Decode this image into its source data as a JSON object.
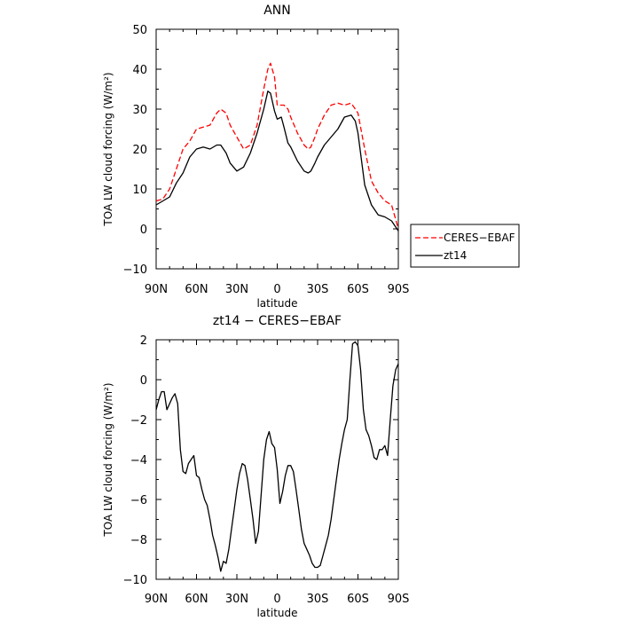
{
  "chart_data": [
    {
      "type": "line",
      "title": "ANN",
      "xlabel": "latitude",
      "ylabel": "TOA LW cloud forcing (W/m²)",
      "xlim": [
        90,
        -90
      ],
      "ylim": [
        -10,
        50
      ],
      "xticks": [
        90,
        60,
        30,
        0,
        -30,
        -60,
        -90
      ],
      "xtick_labels": [
        "90N",
        "60N",
        "30N",
        "0",
        "30S",
        "60S",
        "90S"
      ],
      "yticks": [
        -10,
        0,
        10,
        20,
        30,
        40,
        50
      ],
      "ytick_labels": [
        "−10",
        "0",
        "10",
        "20",
        "30",
        "40",
        "50"
      ],
      "legend": {
        "placement": "right"
      },
      "series": [
        {
          "name": "CERES−EBAF",
          "color": "#ff0000",
          "dash": "dashed",
          "x": [
            90,
            85,
            80,
            75,
            70,
            65,
            60,
            55,
            50,
            45,
            42,
            38,
            35,
            30,
            25,
            20,
            15,
            10,
            7,
            5,
            2,
            0,
            -3,
            -5,
            -8,
            -10,
            -15,
            -20,
            -23,
            -25,
            -28,
            -30,
            -35,
            -40,
            -45,
            -50,
            -55,
            -58,
            -60,
            -65,
            -70,
            -75,
            -80,
            -85,
            -90
          ],
          "y": [
            7,
            7.5,
            10,
            15,
            20,
            22,
            25,
            25.5,
            26,
            29,
            30,
            29,
            26,
            23,
            20,
            21,
            26,
            35,
            40,
            41.5,
            38,
            31,
            31,
            31,
            30,
            28,
            24,
            21,
            20,
            20.5,
            23,
            25,
            28.5,
            31,
            31.5,
            31,
            31.5,
            30,
            29,
            20,
            12,
            9,
            7,
            6,
            0
          ]
        },
        {
          "name": "zt14",
          "color": "#000000",
          "dash": "solid",
          "x": [
            90,
            85,
            80,
            75,
            70,
            65,
            60,
            55,
            50,
            45,
            42,
            38,
            35,
            30,
            25,
            20,
            15,
            10,
            7,
            5,
            2,
            0,
            -3,
            -5,
            -8,
            -10,
            -15,
            -20,
            -23,
            -25,
            -28,
            -30,
            -35,
            -40,
            -45,
            -50,
            -55,
            -58,
            -60,
            -65,
            -70,
            -75,
            -80,
            -85,
            -90
          ],
          "y": [
            6,
            7,
            8,
            11.5,
            14,
            18,
            20,
            20.5,
            20,
            21,
            21,
            19,
            16.5,
            14.5,
            15.5,
            19,
            24,
            30,
            34.5,
            34,
            29.5,
            27.5,
            28,
            25.5,
            21.5,
            20.5,
            17,
            14.5,
            14,
            14.5,
            16.5,
            18,
            21,
            23,
            25,
            28,
            28.5,
            27,
            24,
            11,
            6,
            3.5,
            3,
            2,
            -0.5
          ]
        }
      ]
    },
    {
      "type": "line",
      "title": "zt14 − CERES−EBAF",
      "xlabel": "latitude",
      "ylabel": "TOA LW cloud forcing (W/m²)",
      "xlim": [
        90,
        -90
      ],
      "ylim": [
        -10,
        2
      ],
      "xticks": [
        90,
        60,
        30,
        0,
        -30,
        -60,
        -90
      ],
      "xtick_labels": [
        "90N",
        "60N",
        "30N",
        "0",
        "30S",
        "60S",
        "90S"
      ],
      "yticks": [
        -10,
        -8,
        -6,
        -4,
        -2,
        0,
        2
      ],
      "ytick_labels": [
        "−10",
        "−8",
        "−6",
        "−4",
        "−2",
        "0",
        "2"
      ],
      "series": [
        {
          "color": "#000000",
          "dash": "solid",
          "x": [
            90,
            88,
            86,
            84,
            82,
            80,
            78,
            76,
            74,
            72,
            70,
            68,
            66,
            64,
            62,
            60,
            58,
            56,
            54,
            52,
            50,
            48,
            46,
            44,
            42,
            40,
            38,
            36,
            34,
            32,
            30,
            28,
            26,
            24,
            22,
            20,
            18,
            16,
            14,
            12,
            10,
            8,
            6,
            4,
            2,
            0,
            -2,
            -4,
            -6,
            -8,
            -10,
            -12,
            -14,
            -16,
            -18,
            -20,
            -22,
            -24,
            -26,
            -28,
            -30,
            -32,
            -34,
            -36,
            -38,
            -40,
            -42,
            -44,
            -46,
            -48,
            -50,
            -52,
            -54,
            -56,
            -58,
            -60,
            -62,
            -64,
            -66,
            -68,
            -70,
            -72,
            -74,
            -76,
            -78,
            -80,
            -82,
            -84,
            -86,
            -88,
            -90
          ],
          "y": [
            -1.5,
            -1,
            -0.6,
            -0.6,
            -1.5,
            -1.2,
            -0.9,
            -0.7,
            -1.2,
            -3.5,
            -4.6,
            -4.7,
            -4.2,
            -4.0,
            -3.8,
            -4.8,
            -4.9,
            -5.5,
            -6.0,
            -6.3,
            -7.0,
            -7.8,
            -8.3,
            -8.9,
            -9.6,
            -9.1,
            -9.2,
            -8.5,
            -7.5,
            -6.5,
            -5.5,
            -4.7,
            -4.2,
            -4.3,
            -5.0,
            -6.0,
            -7.0,
            -8.2,
            -7.6,
            -5.8,
            -4.0,
            -3.0,
            -2.6,
            -3.2,
            -3.4,
            -4.5,
            -6.2,
            -5.6,
            -4.8,
            -4.3,
            -4.3,
            -4.6,
            -5.5,
            -6.5,
            -7.5,
            -8.2,
            -8.5,
            -8.8,
            -9.2,
            -9.4,
            -9.4,
            -9.3,
            -8.8,
            -8.3,
            -7.8,
            -7.0,
            -6.0,
            -5.0,
            -4.0,
            -3.2,
            -2.5,
            -2.0,
            0.0,
            1.8,
            1.9,
            1.7,
            0.5,
            -1.5,
            -2.5,
            -2.8,
            -3.3,
            -3.9,
            -4.0,
            -3.5,
            -3.5,
            -3.3,
            -3.8,
            -2.0,
            -0.3,
            0.5,
            0.8
          ]
        }
      ]
    }
  ]
}
